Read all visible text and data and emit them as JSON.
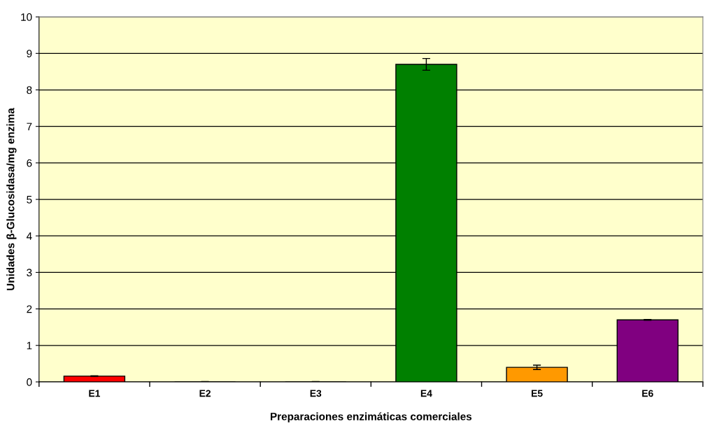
{
  "chart_data": {
    "type": "bar",
    "xlabel": "Preparaciones enzimáticas comerciales",
    "ylabel": "Unidades β-Glucosidasa/mg enzima",
    "categories": [
      "E1",
      "E2",
      "E3",
      "E4",
      "E5",
      "E6"
    ],
    "values": [
      0.16,
      0,
      0,
      8.7,
      0.4,
      1.7
    ],
    "errors": [
      0.01,
      0.01,
      0.01,
      0.16,
      0.06,
      0.01
    ],
    "colors": [
      "#ff0000",
      "#000000",
      "#000000",
      "#008000",
      "#ff9900",
      "#800080"
    ],
    "ylim": [
      0,
      10
    ],
    "yticks": [
      0,
      1,
      2,
      3,
      4,
      5,
      6,
      7,
      8,
      9,
      10
    ],
    "grid": "y",
    "legend": false
  }
}
